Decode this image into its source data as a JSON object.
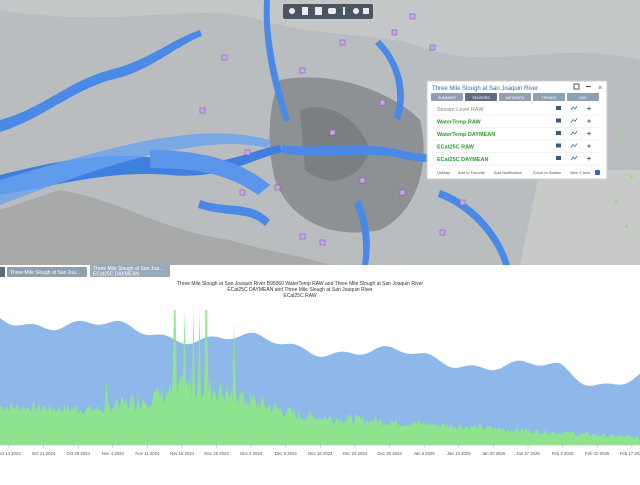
{
  "panel": {
    "title": "Three Mile Slough at San Joaquin River",
    "tabs": [
      "SUMMARY",
      "SENSORS",
      "METADATA",
      "TRENDS",
      "KML"
    ],
    "sensors": [
      "Stream Level RAW",
      "WaterTemp RAW",
      "WaterTemp DAYMEAN",
      "ECat25C RAW",
      "ECat25C DAYMEAN"
    ],
    "actions": [
      "UnMap",
      "Add to Favorite",
      "Add Notification",
      "Zoom to Station"
    ],
    "checkbox_label": "New Y Axis"
  },
  "chart_tabs": [
    "Three Mile Slough at San Joa...",
    "Three Mile Slough at San Joa...",
    "ECat25C DAYMEAN"
  ],
  "chart": {
    "title_lines": [
      "Three Mile Slough at San Joaquin River B95060 WaterTemp RAW and Three Mile Slough at San Joaquin River",
      "ECat25C DAYMEAN and Three Mile Slough at San Joaquin River",
      "ECat25C RAW"
    ],
    "x_labels": [
      "Oct 14 2024",
      "Oct 21 2024",
      "Oct 28 2024",
      "Nov 4 2024",
      "Nov 11 2024",
      "Nov 18 2024",
      "Nov 25 2024",
      "Dec 2 2024",
      "Dec 9 2024",
      "Dec 16 2024",
      "Dec 23 2024",
      "Dec 30 2024",
      "Jan 6 2025",
      "Jan 13 2025",
      "Jan 20 2025",
      "Jan 27 2025",
      "Feb 3 2025",
      "Feb 10 2025",
      "Feb 17 2025"
    ]
  }
}
